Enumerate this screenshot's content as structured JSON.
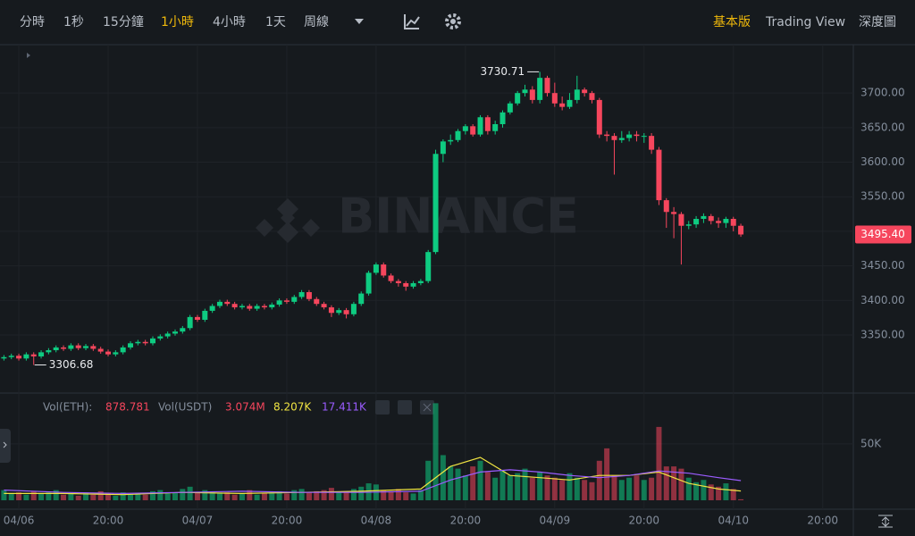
{
  "toolbar": {
    "intervals": [
      "分時",
      "1秒",
      "15分鐘",
      "1小時",
      "4小時",
      "1天",
      "周線"
    ],
    "active_interval": "1小時",
    "views": [
      "基本版",
      "Trading View",
      "深度圖"
    ],
    "active_view": "基本版"
  },
  "chart_data": {
    "type": "candlestick",
    "watermark": "BINANCE",
    "up_color": "#0ecb81",
    "down_color": "#f6465d",
    "categories": [
      null,
      null,
      "04/06",
      null,
      null,
      null,
      null,
      null,
      null,
      null,
      null,
      null,
      null,
      null,
      "20:00",
      null,
      null,
      null,
      null,
      null,
      null,
      null,
      null,
      null,
      null,
      null,
      "04/07",
      null,
      null,
      null,
      null,
      null,
      null,
      null,
      null,
      null,
      null,
      null,
      "20:00",
      null,
      null,
      null,
      null,
      null,
      null,
      null,
      null,
      null,
      null,
      null,
      "04/08",
      null,
      null,
      null,
      null,
      null,
      null,
      null,
      null,
      null,
      null,
      null,
      "20:00",
      null,
      null,
      null,
      null,
      null,
      null,
      null,
      null,
      null,
      null,
      null,
      "04/09",
      null,
      null,
      null,
      null,
      null,
      null,
      null,
      null,
      null,
      null,
      null,
      "20:00",
      null,
      null,
      null,
      null,
      null,
      null,
      null,
      null,
      null,
      null,
      null,
      "04/10",
      null,
      null,
      null,
      null,
      null,
      null,
      null,
      null,
      null,
      null,
      null,
      "20:00"
    ],
    "open": [
      3316,
      3318,
      3320,
      3316,
      3322,
      3319,
      3325,
      3328,
      3332,
      3330,
      3335,
      3331,
      3334,
      3330,
      3326,
      3322,
      3325,
      3332,
      3338,
      3340,
      3338,
      3345,
      3348,
      3352,
      3355,
      3360,
      3376,
      3372,
      3385,
      3392,
      3398,
      3395,
      3390,
      3392,
      3388,
      3392,
      3390,
      3394,
      3400,
      3398,
      3405,
      3412,
      3402,
      3395,
      3390,
      3382,
      3386,
      3380,
      3395,
      3410,
      3440,
      3452,
      3436,
      3428,
      3425,
      3420,
      3425,
      3428,
      3470,
      3612,
      3630,
      3632,
      3645,
      3652,
      3640,
      3665,
      3645,
      3655,
      3672,
      3685,
      3700,
      3705,
      3690,
      3722,
      3700,
      3685,
      3680,
      3690,
      3705,
      3700,
      3690,
      3640,
      3638,
      3632,
      3635,
      3640,
      3638,
      3638,
      3618,
      3545,
      3528,
      3525,
      3508,
      3510,
      3518,
      3522,
      3515,
      3512,
      3518,
      3508,
      null,
      null,
      null,
      null,
      null,
      null,
      null,
      null,
      null,
      null,
      null
    ],
    "high": [
      3321,
      3323,
      3323,
      3325,
      3325,
      3328,
      3331,
      3335,
      3335,
      3338,
      3338,
      3337,
      3337,
      3333,
      3329,
      3328,
      3335,
      3341,
      3343,
      3343,
      3348,
      3351,
      3355,
      3358,
      3363,
      3379,
      3379,
      3388,
      3395,
      3401,
      3401,
      3398,
      3395,
      3395,
      3395,
      3395,
      3397,
      3403,
      3403,
      3408,
      3415,
      3415,
      3405,
      3398,
      3393,
      3389,
      3389,
      3398,
      3413,
      3443,
      3455,
      3455,
      3439,
      3431,
      3428,
      3428,
      3431,
      3473,
      3618,
      3633,
      3640,
      3648,
      3655,
      3655,
      3668,
      3668,
      3660,
      3675,
      3688,
      3703,
      3712,
      3710,
      3730.71,
      3725,
      3715,
      3695,
      3700,
      3725,
      3708,
      3703,
      3693,
      3645,
      3642,
      3645,
      3645,
      3645,
      3642,
      3642,
      3622,
      3548,
      3535,
      3528,
      3515,
      3522,
      3526,
      3525,
      3520,
      3521,
      3521,
      3511,
      null,
      null,
      null,
      null,
      null,
      null,
      null,
      null,
      null,
      null,
      null
    ],
    "low": [
      3313,
      3315,
      3313,
      3313,
      3306.68,
      3316,
      3322,
      3325,
      3327,
      3327,
      3328,
      3328,
      3327,
      3323,
      3319,
      3319,
      3322,
      3329,
      3335,
      3335,
      3335,
      3342,
      3345,
      3349,
      3352,
      3357,
      3369,
      3369,
      3382,
      3389,
      3392,
      3387,
      3387,
      3385,
      3385,
      3387,
      3387,
      3391,
      3395,
      3395,
      3402,
      3399,
      3392,
      3387,
      3376,
      3379,
      3374,
      3377,
      3392,
      3407,
      3437,
      3433,
      3425,
      3420,
      3414,
      3417,
      3422,
      3425,
      3467,
      3600,
      3625,
      3629,
      3640,
      3637,
      3637,
      3640,
      3640,
      3650,
      3669,
      3682,
      3695,
      3685,
      3685,
      3695,
      3680,
      3675,
      3677,
      3685,
      3695,
      3685,
      3635,
      3630,
      3582,
      3628,
      3630,
      3630,
      3628,
      3612,
      3538,
      3505,
      3490,
      3452,
      3503,
      3505,
      3512,
      3510,
      3505,
      3505,
      3500,
      3492,
      null,
      null,
      null,
      null,
      null,
      null,
      null,
      null,
      null,
      null,
      null
    ],
    "close": [
      3318,
      3320,
      3316,
      3322,
      3319,
      3325,
      3328,
      3332,
      3330,
      3335,
      3331,
      3334,
      3330,
      3326,
      3322,
      3325,
      3332,
      3338,
      3340,
      3338,
      3345,
      3348,
      3352,
      3355,
      3360,
      3376,
      3372,
      3385,
      3392,
      3398,
      3395,
      3390,
      3392,
      3388,
      3392,
      3390,
      3394,
      3400,
      3398,
      3405,
      3412,
      3402,
      3395,
      3390,
      3382,
      3386,
      3380,
      3395,
      3410,
      3440,
      3452,
      3436,
      3428,
      3425,
      3420,
      3425,
      3428,
      3470,
      3612,
      3630,
      3632,
      3645,
      3652,
      3640,
      3665,
      3645,
      3655,
      3672,
      3685,
      3700,
      3705,
      3690,
      3722,
      3700,
      3685,
      3680,
      3690,
      3705,
      3700,
      3690,
      3640,
      3638,
      3632,
      3635,
      3640,
      3638,
      3638,
      3618,
      3545,
      3528,
      3525,
      3508,
      3510,
      3518,
      3522,
      3515,
      3512,
      3518,
      3508,
      3495.4,
      null,
      null,
      null,
      null,
      null,
      null,
      null,
      null,
      null,
      null,
      null
    ],
    "ylim": [
      3266,
      3770
    ],
    "yticks": [
      {
        "value": 3350,
        "label": "3350.00"
      },
      {
        "value": 3400,
        "label": "3400.00"
      },
      {
        "value": 3450,
        "label": "3450.00"
      },
      {
        "value": 3500,
        "label": "3500.00"
      },
      {
        "value": 3550,
        "label": "3550.00"
      },
      {
        "value": 3600,
        "label": "3600.00"
      },
      {
        "value": 3650,
        "label": "3650.00"
      },
      {
        "value": 3700,
        "label": "3700.00"
      }
    ],
    "grid": true,
    "annotations": [
      {
        "value": 3730.71,
        "label": "3730.71"
      },
      {
        "value": 3306.68,
        "label": "3306.68"
      }
    ],
    "price_tag": {
      "value": 3495.4,
      "label": "3495.40"
    },
    "volume": {
      "type": "bar",
      "title": "Vol(ETH):",
      "values": [
        9000,
        6000,
        7000,
        5000,
        8000,
        6000,
        7000,
        9000,
        5000,
        6000,
        4000,
        7000,
        5000,
        8000,
        6000,
        4000,
        7000,
        5000,
        6000,
        5000,
        8000,
        9000,
        6000,
        7000,
        10000,
        12000,
        7000,
        9000,
        8000,
        6000,
        7000,
        5000,
        6000,
        9000,
        5000,
        6000,
        7000,
        8000,
        6000,
        9000,
        10000,
        7000,
        8000,
        9000,
        11000,
        7000,
        8000,
        10000,
        12000,
        15000,
        14000,
        9000,
        8000,
        10000,
        7000,
        6000,
        9000,
        35000,
        86000,
        40000,
        30000,
        28000,
        22000,
        30000,
        35000,
        25000,
        20000,
        26000,
        22000,
        24000,
        28000,
        20000,
        25000,
        22000,
        20000,
        18000,
        24000,
        20000,
        18000,
        16000,
        35000,
        46000,
        22000,
        18000,
        20000,
        22000,
        18000,
        20000,
        65000,
        30000,
        30000,
        28000,
        20000,
        16000,
        18000,
        14000,
        12000,
        15000,
        10000,
        878.781,
        null,
        null,
        null,
        null,
        null,
        null,
        null,
        null,
        null,
        null,
        null
      ],
      "ylim": [
        0,
        95000
      ],
      "yticks": [
        {
          "value": 50000,
          "label": "50K"
        }
      ],
      "usdt_title": "Vol(USDT)",
      "usdt_value": {
        "value": 3074000,
        "label": "3.074M"
      },
      "ma": [
        {
          "color": "#f0e442",
          "x": [
            0,
            8,
            16,
            24,
            32,
            40,
            48,
            56,
            60,
            64,
            68,
            72,
            76,
            80,
            84,
            88,
            92,
            96,
            99
          ],
          "values": [
            6000,
            6000,
            5000,
            7000,
            6000,
            7000,
            8000,
            10000,
            30000,
            38000,
            22000,
            20000,
            18000,
            22000,
            22000,
            25000,
            15000,
            10000,
            8207
          ],
          "label": "8.207K"
        },
        {
          "color": "#9b5cff",
          "x": [
            0,
            8,
            16,
            24,
            32,
            40,
            48,
            56,
            60,
            64,
            68,
            72,
            76,
            80,
            84,
            88,
            92,
            96,
            99
          ],
          "values": [
            9000,
            7000,
            6000,
            7000,
            8000,
            7000,
            7000,
            8000,
            18000,
            25000,
            27000,
            25000,
            22000,
            20000,
            22000,
            26000,
            24000,
            20000,
            17411
          ],
          "label": "17.411K"
        }
      ]
    }
  }
}
